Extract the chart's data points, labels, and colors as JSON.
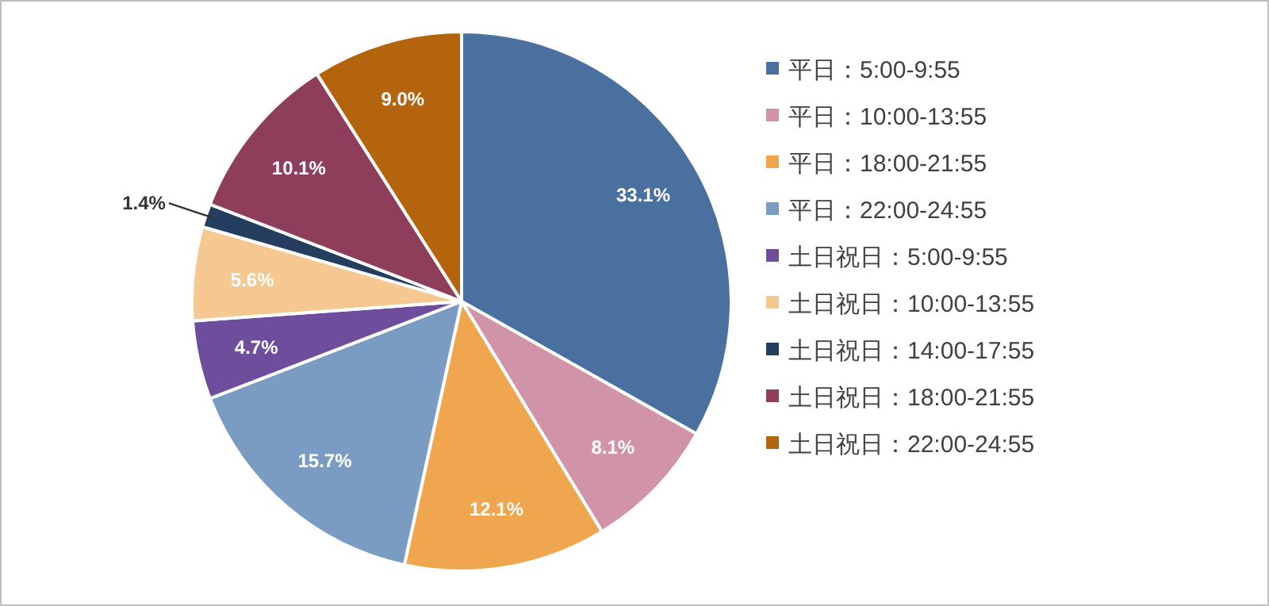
{
  "chart_data": {
    "type": "pie",
    "categories": [
      "平日：5:00-9:55",
      "平日：10:00-13:55",
      "平日：18:00-21:55",
      "平日：22:00-24:55",
      "土日祝日：5:00-9:55",
      "土日祝日：10:00-13:55",
      "土日祝日：14:00-17:55",
      "土日祝日：18:00-21:55",
      "土日祝日：22:00-24:55"
    ],
    "values": [
      33.1,
      8.1,
      12.1,
      15.7,
      4.7,
      5.6,
      1.4,
      10.1,
      9.0
    ],
    "value_labels": [
      "33.1%",
      "8.1%",
      "12.1%",
      "15.7%",
      "4.7%",
      "5.6%",
      "1.4%",
      "10.1%",
      "9.0%"
    ],
    "colors": [
      "#4a70a0",
      "#d093a7",
      "#f0a64e",
      "#7b9cc2",
      "#6e4e9c",
      "#f5c891",
      "#253d5e",
      "#8e3d5a",
      "#b3640c"
    ],
    "legend": "right"
  }
}
